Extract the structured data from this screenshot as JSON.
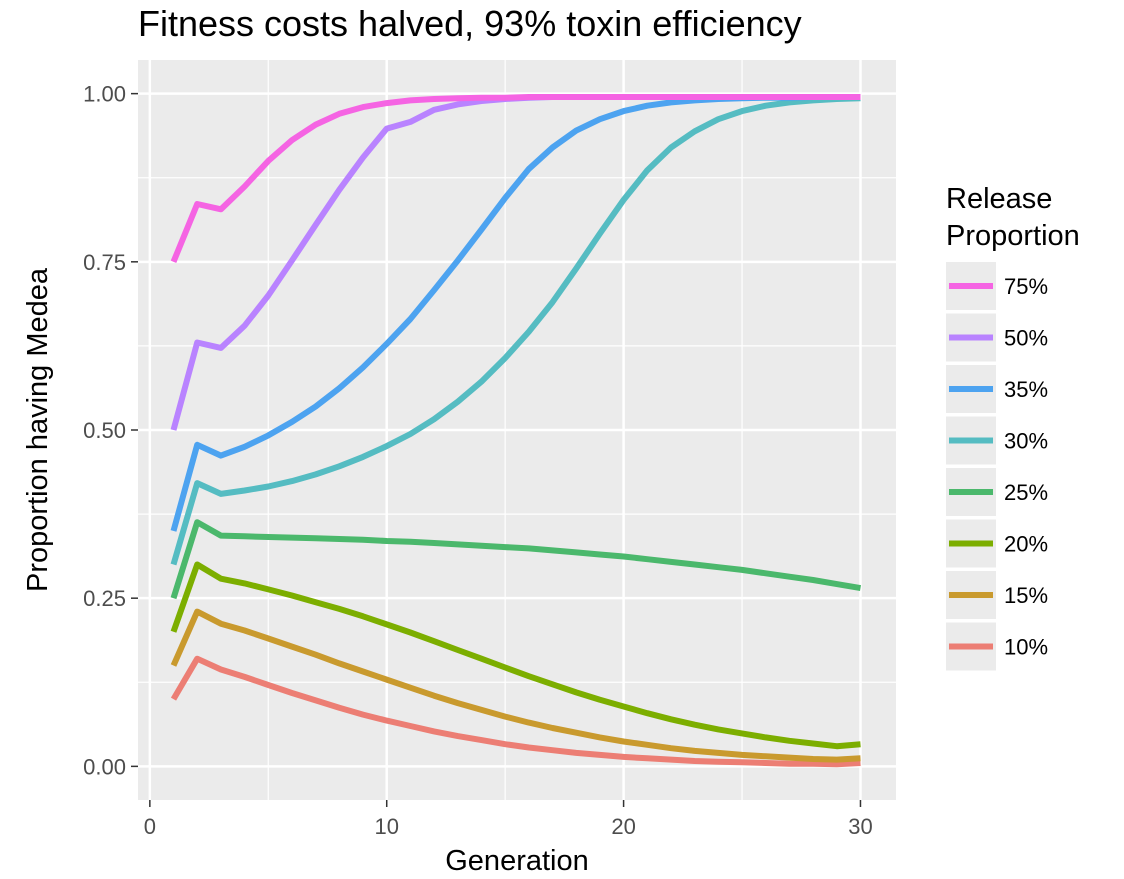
{
  "chart_data": {
    "type": "line",
    "title": "Fitness costs halved, 93% toxin efficiency",
    "xlabel": "Generation",
    "ylabel": "Proportion having Medea",
    "xlim": [
      -0.5,
      31.5
    ],
    "ylim": [
      -0.05,
      1.05
    ],
    "x_ticks": [
      0,
      10,
      20,
      30
    ],
    "x_tick_labels": [
      "0",
      "10",
      "20",
      "30"
    ],
    "y_ticks": [
      0,
      0.25,
      0.5,
      0.75,
      1.0
    ],
    "y_tick_labels": [
      "0.00",
      "0.25",
      "0.50",
      "0.75",
      "1.00"
    ],
    "grid": true,
    "legend": {
      "title_lines": [
        "Release",
        "Proportion"
      ],
      "position": "right"
    },
    "x": [
      1,
      2,
      3,
      4,
      5,
      6,
      7,
      8,
      9,
      10,
      11,
      12,
      13,
      14,
      15,
      16,
      17,
      18,
      19,
      20,
      21,
      22,
      23,
      24,
      25,
      26,
      27,
      28,
      29,
      30
    ],
    "series": [
      {
        "name": "75%",
        "color": "#F564E3",
        "values": [
          0.75,
          0.836,
          0.828,
          0.862,
          0.9,
          0.931,
          0.954,
          0.97,
          0.98,
          0.986,
          0.99,
          0.992,
          0.993,
          0.994,
          0.994,
          0.995,
          0.995,
          0.995,
          0.995,
          0.995,
          0.995,
          0.995,
          0.995,
          0.995,
          0.995,
          0.995,
          0.995,
          0.995,
          0.995,
          0.995
        ]
      },
      {
        "name": "50%",
        "color": "#B983FF",
        "values": [
          0.5,
          0.63,
          0.622,
          0.655,
          0.7,
          0.752,
          0.805,
          0.857,
          0.905,
          0.948,
          0.958,
          0.976,
          0.984,
          0.989,
          0.992,
          0.994,
          0.995,
          0.995,
          0.995,
          0.995,
          0.995,
          0.995,
          0.995,
          0.995,
          0.995,
          0.995,
          0.995,
          0.995,
          0.995,
          0.995
        ]
      },
      {
        "name": "35%",
        "color": "#4DA3F0",
        "values": [
          0.35,
          0.478,
          0.462,
          0.475,
          0.492,
          0.512,
          0.535,
          0.562,
          0.593,
          0.628,
          0.665,
          0.708,
          0.752,
          0.798,
          0.845,
          0.888,
          0.92,
          0.945,
          0.962,
          0.974,
          0.982,
          0.987,
          0.99,
          0.992,
          0.993,
          0.994,
          0.994,
          0.995,
          0.995,
          0.995
        ]
      },
      {
        "name": "30%",
        "color": "#55BCC2",
        "values": [
          0.3,
          0.421,
          0.405,
          0.41,
          0.416,
          0.424,
          0.434,
          0.446,
          0.46,
          0.476,
          0.494,
          0.516,
          0.542,
          0.572,
          0.607,
          0.646,
          0.69,
          0.74,
          0.792,
          0.842,
          0.886,
          0.92,
          0.944,
          0.962,
          0.974,
          0.982,
          0.987,
          0.99,
          0.992,
          0.993
        ]
      },
      {
        "name": "25%",
        "color": "#4BB86C",
        "values": [
          0.25,
          0.363,
          0.343,
          0.342,
          0.341,
          0.34,
          0.339,
          0.338,
          0.337,
          0.335,
          0.334,
          0.332,
          0.33,
          0.328,
          0.326,
          0.324,
          0.321,
          0.318,
          0.315,
          0.312,
          0.308,
          0.304,
          0.3,
          0.296,
          0.292,
          0.287,
          0.282,
          0.277,
          0.271,
          0.265
        ]
      },
      {
        "name": "20%",
        "color": "#7CAE00",
        "values": [
          0.2,
          0.3,
          0.279,
          0.272,
          0.263,
          0.254,
          0.244,
          0.234,
          0.223,
          0.211,
          0.199,
          0.186,
          0.173,
          0.16,
          0.147,
          0.134,
          0.122,
          0.11,
          0.099,
          0.089,
          0.079,
          0.07,
          0.062,
          0.055,
          0.049,
          0.043,
          0.038,
          0.034,
          0.03,
          0.033
        ]
      },
      {
        "name": "15%",
        "color": "#C99A2E",
        "values": [
          0.15,
          0.23,
          0.212,
          0.202,
          0.19,
          0.178,
          0.166,
          0.153,
          0.141,
          0.129,
          0.117,
          0.105,
          0.094,
          0.084,
          0.074,
          0.065,
          0.057,
          0.05,
          0.043,
          0.037,
          0.032,
          0.027,
          0.023,
          0.02,
          0.017,
          0.015,
          0.013,
          0.011,
          0.01,
          0.012
        ]
      },
      {
        "name": "10%",
        "color": "#EC7E74",
        "values": [
          0.1,
          0.16,
          0.144,
          0.133,
          0.121,
          0.109,
          0.098,
          0.087,
          0.077,
          0.068,
          0.06,
          0.052,
          0.045,
          0.039,
          0.033,
          0.028,
          0.024,
          0.02,
          0.017,
          0.014,
          0.012,
          0.01,
          0.008,
          0.007,
          0.006,
          0.005,
          0.004,
          0.004,
          0.003,
          0.005
        ]
      }
    ]
  }
}
